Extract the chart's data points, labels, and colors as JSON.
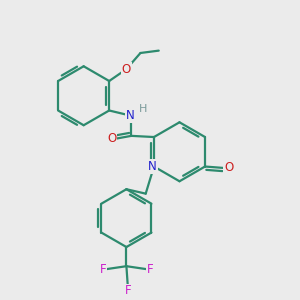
{
  "bg_color": "#ebebeb",
  "bond_color": "#2d8a6e",
  "N_color": "#2020cc",
  "O_color": "#cc2020",
  "F_color": "#cc20cc",
  "H_color": "#7a9a9a",
  "line_width": 1.6,
  "fig_size": [
    3.0,
    3.0
  ],
  "dpi": 100,
  "xlim": [
    0.0,
    1.0
  ],
  "ylim": [
    0.0,
    1.0
  ]
}
